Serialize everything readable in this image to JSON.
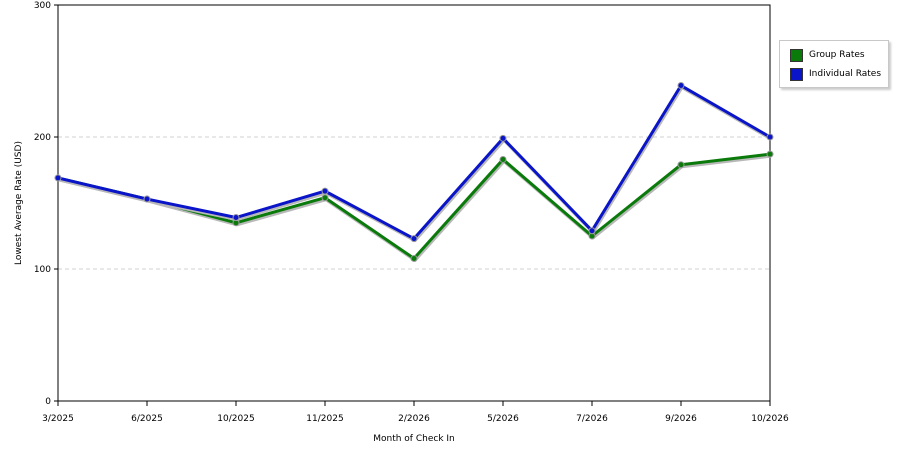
{
  "chart_data": {
    "type": "line",
    "categories": [
      "3/2025",
      "6/2025",
      "10/2025",
      "11/2025",
      "2/2026",
      "5/2026",
      "7/2026",
      "9/2026",
      "10/2026"
    ],
    "series": [
      {
        "name": "Group Rates",
        "color": "#0a7a0a",
        "values": [
          169,
          153,
          135,
          154,
          108,
          183,
          125,
          179,
          187
        ]
      },
      {
        "name": "Individual Rates",
        "color": "#0a14c8",
        "values": [
          169,
          153,
          139,
          159,
          123,
          199,
          129,
          239,
          200
        ]
      }
    ],
    "xlabel": "Month of Check In",
    "ylabel": "Lowest Average Rate (USD)",
    "ylim": [
      0,
      300
    ],
    "yticks": [
      0,
      100,
      200,
      300
    ],
    "grid": "horizontal dashed",
    "legend_position": "top-right"
  }
}
